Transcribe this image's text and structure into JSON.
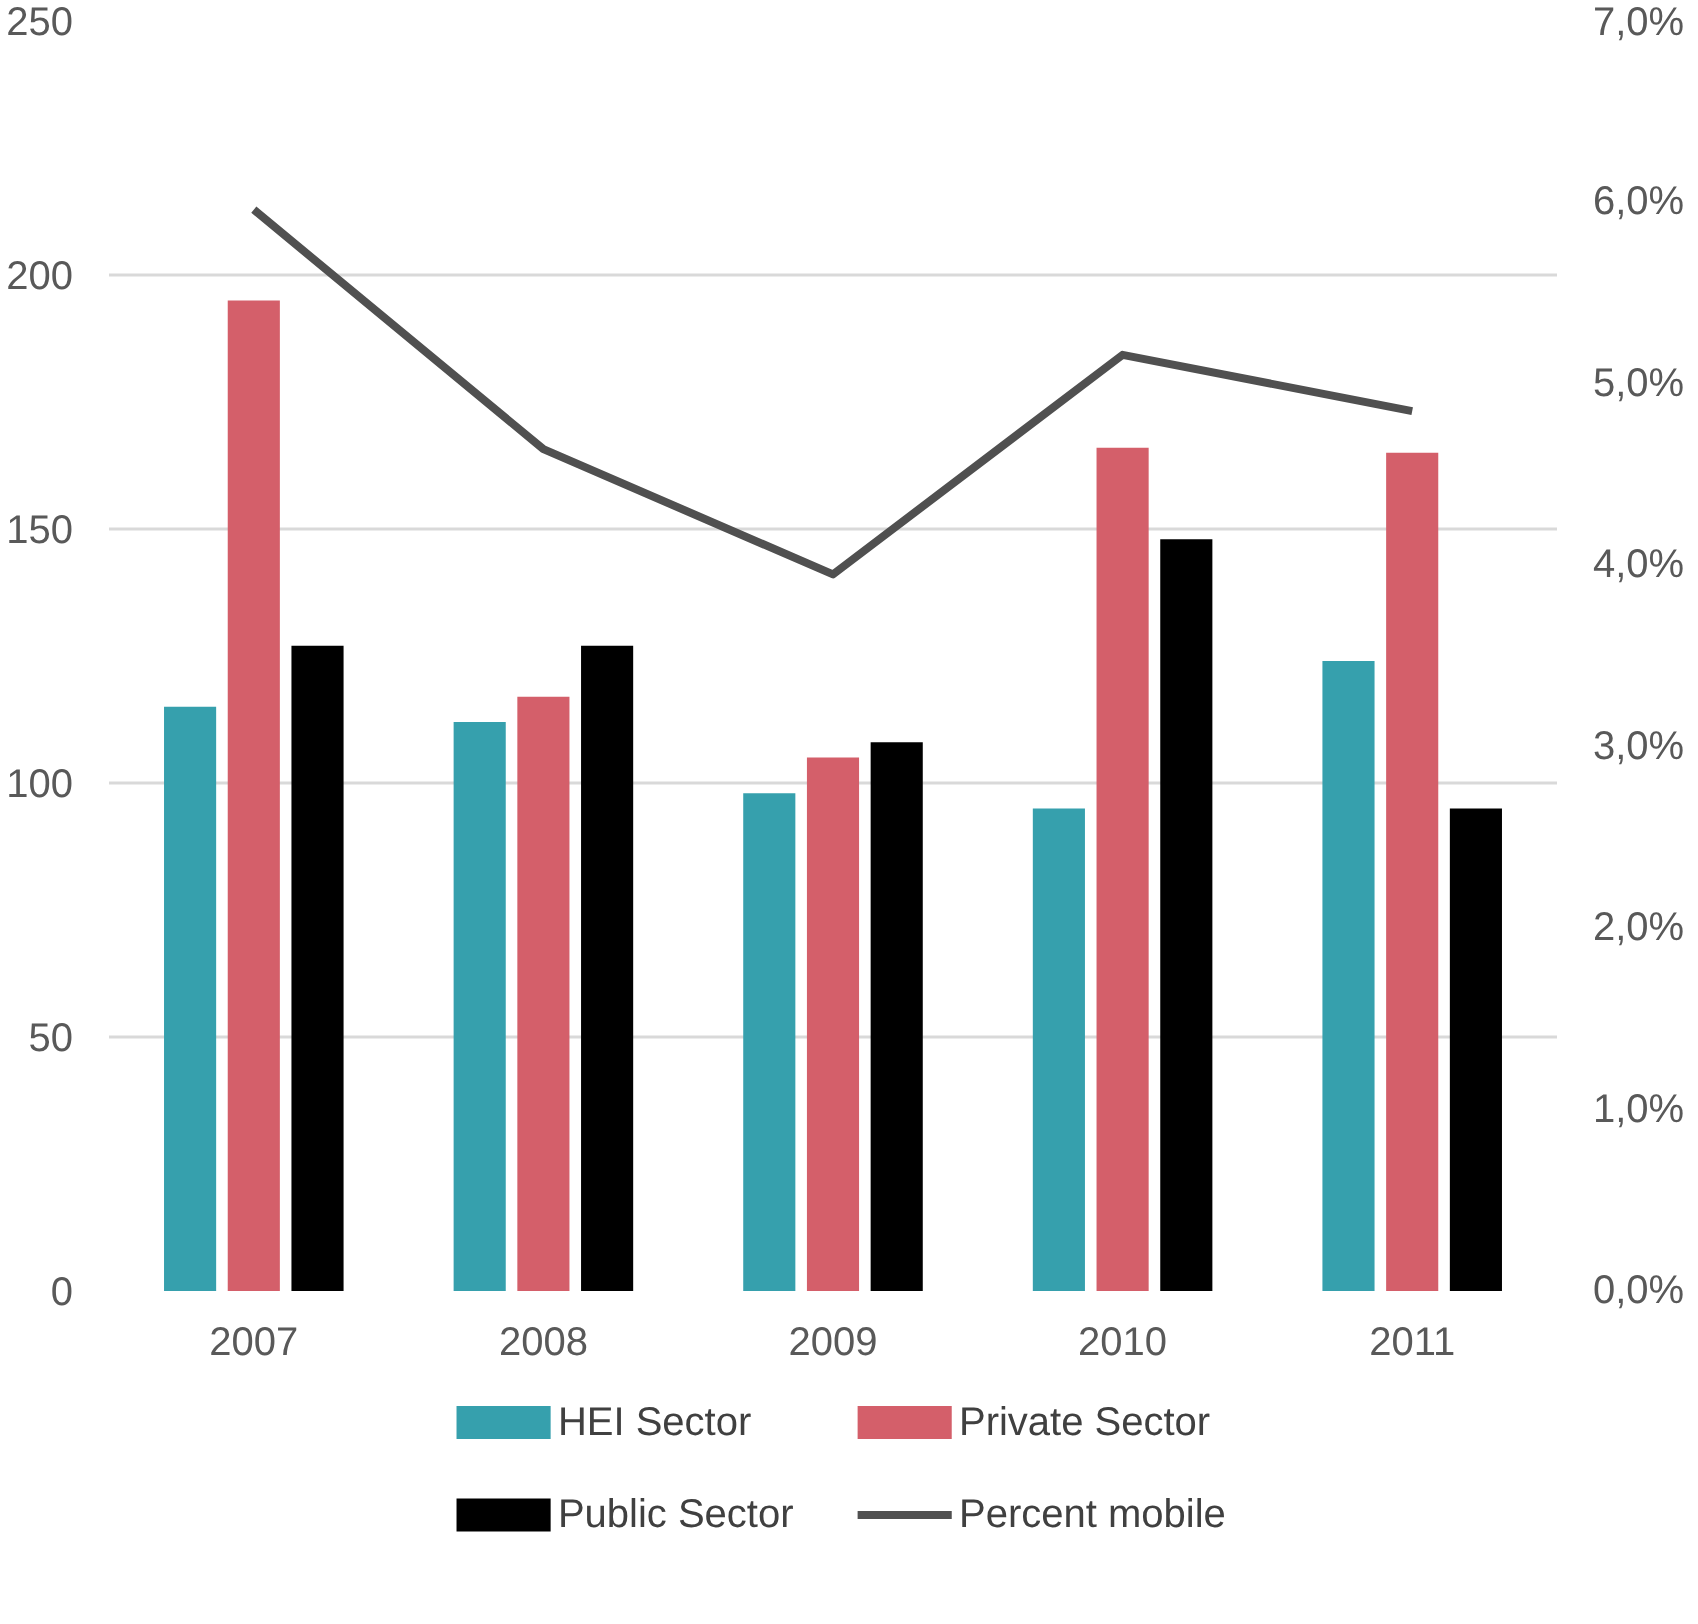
{
  "chart_data": {
    "type": "bar",
    "categories": [
      "2007",
      "2008",
      "2009",
      "2010",
      "2011"
    ],
    "series": [
      {
        "name": "HEI Sector",
        "color": "#36a0ad",
        "values": [
          115,
          112,
          98,
          95,
          124
        ]
      },
      {
        "name": "Private Sector",
        "color": "#d45f6a",
        "values": [
          195,
          117,
          105,
          166,
          165
        ]
      },
      {
        "name": "Public Sector",
        "color": "#000000",
        "values": [
          127,
          127,
          108,
          148,
          95
        ]
      },
      {
        "name": "Percent mobile",
        "type": "line",
        "axis": "y2",
        "color": "#505050",
        "values": [
          5.96,
          4.64,
          3.95,
          5.16,
          4.85
        ]
      }
    ],
    "ylim": [
      0,
      250
    ],
    "yticks": [
      0,
      50,
      100,
      150,
      200,
      250
    ],
    "y2lim": [
      0,
      7
    ],
    "y2ticks": [
      {
        "value": 0,
        "label": "0,0%"
      },
      {
        "value": 1,
        "label": "1,0%"
      },
      {
        "value": 2,
        "label": "2,0%"
      },
      {
        "value": 3,
        "label": "3,0%"
      },
      {
        "value": 4,
        "label": "4,0%"
      },
      {
        "value": 5,
        "label": "5,0%"
      },
      {
        "value": 6,
        "label": "6,0%"
      },
      {
        "value": 7,
        "label": "7,0%"
      }
    ],
    "grid": "y",
    "legend": "bottom",
    "marker": "none",
    "line_style": "solid"
  }
}
